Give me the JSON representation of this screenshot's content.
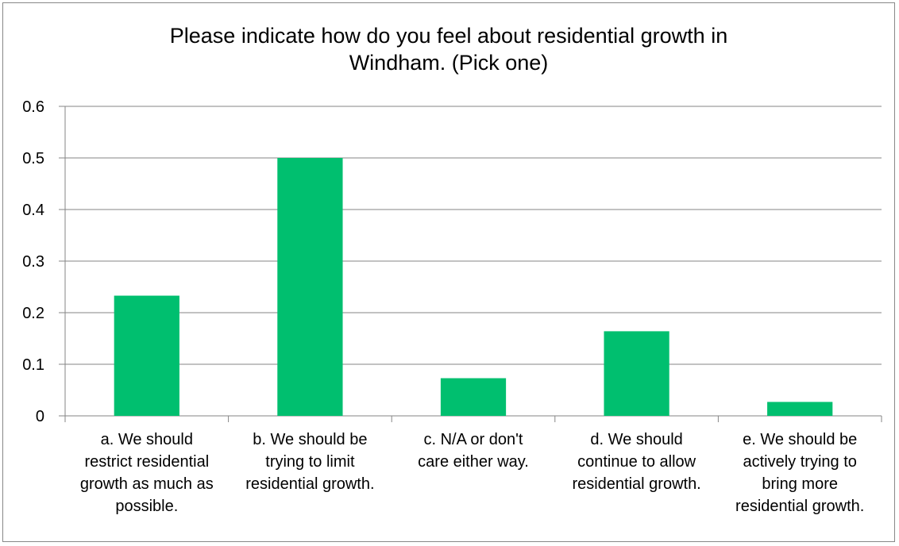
{
  "chart_data": {
    "type": "bar",
    "title_lines": [
      "Please indicate how do you feel about residential growth in",
      "Windham. (Pick one)"
    ],
    "categories": [
      "a. We should\nrestrict residential\ngrowth as much as\npossible.",
      "b. We should be\ntrying to limit\nresidential growth.",
      "c. N/A or don't\ncare either way.",
      "d. We should\ncontinue to allow\nresidential growth.",
      "e. We should be\nactively trying to\nbring more\nresidential growth."
    ],
    "values": [
      0.233,
      0.5,
      0.073,
      0.164,
      0.027
    ],
    "ylim": [
      0,
      0.6
    ],
    "yticks": [
      "0",
      "0.1",
      "0.2",
      "0.3",
      "0.4",
      "0.5",
      "0.6"
    ],
    "grid": true,
    "legend": "none",
    "bar_color": "#00BF6F",
    "grid_color": "#868686"
  }
}
